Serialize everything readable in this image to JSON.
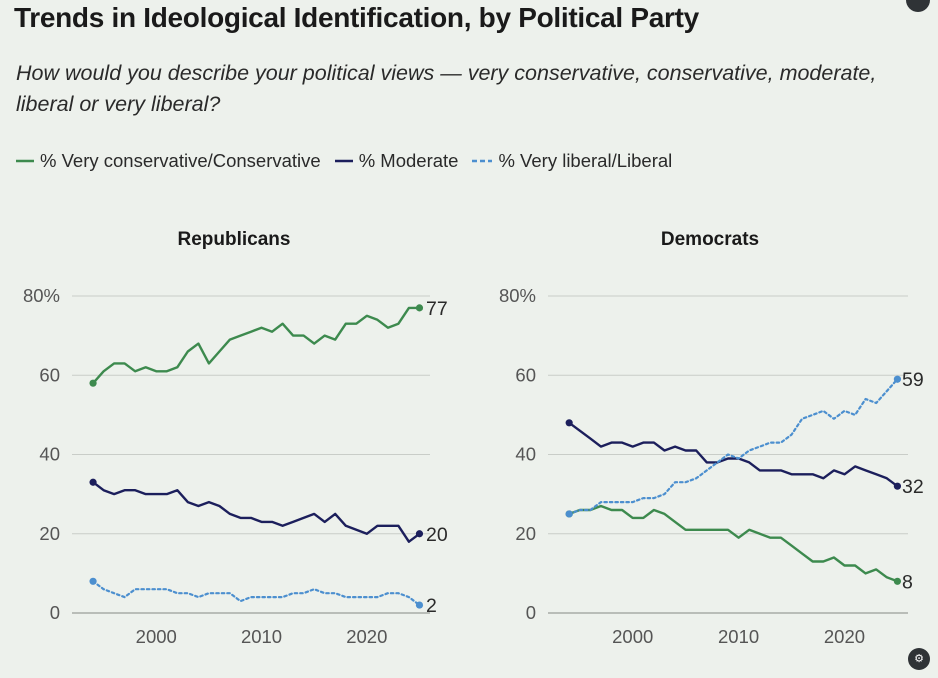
{
  "title": "Trends in Ideological Identification, by Political Party",
  "subtitle": "How would you describe your political views — very conservative, conservative, moderate, liberal or very liberal?",
  "legend": {
    "conservative": "% Very conservative/Conservative",
    "moderate": "% Moderate",
    "liberal": "% Very liberal/Liberal"
  },
  "colors": {
    "conservative": "#3d8a4e",
    "moderate": "#1c1f5c",
    "liberal": "#4c8fcf",
    "grid": "#c9cdc8",
    "axis_text": "#555555"
  },
  "icons": {
    "corner": "settings-icon"
  },
  "chart_data": [
    {
      "type": "line",
      "title": "Republicans",
      "xlabel": "",
      "ylabel": "",
      "xlim": [
        1992,
        2026
      ],
      "ylim": [
        0,
        80
      ],
      "xticks": [
        "2000",
        "2010",
        "2020"
      ],
      "yticks": [
        "0",
        "20",
        "40",
        "60",
        "80%"
      ],
      "series": [
        {
          "name": "% Very conservative/Conservative",
          "style": "solid",
          "color_key": "conservative",
          "end_label": "77",
          "x": [
            1994,
            1995,
            1996,
            1997,
            1998,
            1999,
            2000,
            2001,
            2002,
            2003,
            2004,
            2005,
            2006,
            2007,
            2008,
            2009,
            2010,
            2011,
            2012,
            2013,
            2014,
            2015,
            2016,
            2017,
            2018,
            2019,
            2020,
            2021,
            2022,
            2023,
            2024,
            2025
          ],
          "y": [
            58,
            61,
            63,
            63,
            61,
            62,
            61,
            61,
            62,
            66,
            68,
            63,
            66,
            69,
            70,
            71,
            72,
            71,
            73,
            70,
            70,
            68,
            70,
            69,
            73,
            73,
            75,
            74,
            72,
            73,
            77,
            77
          ]
        },
        {
          "name": "% Moderate",
          "style": "solid",
          "color_key": "moderate",
          "end_label": "20",
          "x": [
            1994,
            1995,
            1996,
            1997,
            1998,
            1999,
            2000,
            2001,
            2002,
            2003,
            2004,
            2005,
            2006,
            2007,
            2008,
            2009,
            2010,
            2011,
            2012,
            2013,
            2014,
            2015,
            2016,
            2017,
            2018,
            2019,
            2020,
            2021,
            2022,
            2023,
            2024,
            2025
          ],
          "y": [
            33,
            31,
            30,
            31,
            31,
            30,
            30,
            30,
            31,
            28,
            27,
            28,
            27,
            25,
            24,
            24,
            23,
            23,
            22,
            23,
            24,
            25,
            23,
            25,
            22,
            21,
            20,
            22,
            22,
            22,
            18,
            20
          ]
        },
        {
          "name": "% Very liberal/Liberal",
          "style": "dotted",
          "color_key": "liberal",
          "end_label": "2",
          "x": [
            1994,
            1995,
            1996,
            1997,
            1998,
            1999,
            2000,
            2001,
            2002,
            2003,
            2004,
            2005,
            2006,
            2007,
            2008,
            2009,
            2010,
            2011,
            2012,
            2013,
            2014,
            2015,
            2016,
            2017,
            2018,
            2019,
            2020,
            2021,
            2022,
            2023,
            2024,
            2025
          ],
          "y": [
            8,
            6,
            5,
            4,
            6,
            6,
            6,
            6,
            5,
            5,
            4,
            5,
            5,
            5,
            3,
            4,
            4,
            4,
            4,
            5,
            5,
            6,
            5,
            5,
            4,
            4,
            4,
            4,
            5,
            5,
            4,
            2
          ]
        }
      ]
    },
    {
      "type": "line",
      "title": "Democrats",
      "xlabel": "",
      "ylabel": "",
      "xlim": [
        1992,
        2026
      ],
      "ylim": [
        0,
        80
      ],
      "xticks": [
        "2000",
        "2010",
        "2020"
      ],
      "yticks": [
        "0",
        "20",
        "40",
        "60",
        "80%"
      ],
      "series": [
        {
          "name": "% Very conservative/Conservative",
          "style": "solid",
          "color_key": "conservative",
          "end_label": "8",
          "x": [
            1994,
            1995,
            1996,
            1997,
            1998,
            1999,
            2000,
            2001,
            2002,
            2003,
            2004,
            2005,
            2006,
            2007,
            2008,
            2009,
            2010,
            2011,
            2012,
            2013,
            2014,
            2015,
            2016,
            2017,
            2018,
            2019,
            2020,
            2021,
            2022,
            2023,
            2024,
            2025
          ],
          "y": [
            25,
            26,
            26,
            27,
            26,
            26,
            24,
            24,
            26,
            25,
            23,
            21,
            21,
            21,
            21,
            21,
            19,
            21,
            20,
            19,
            19,
            17,
            15,
            13,
            13,
            14,
            12,
            12,
            10,
            11,
            9,
            8
          ]
        },
        {
          "name": "% Moderate",
          "style": "solid",
          "color_key": "moderate",
          "end_label": "32",
          "x": [
            1994,
            1995,
            1996,
            1997,
            1998,
            1999,
            2000,
            2001,
            2002,
            2003,
            2004,
            2005,
            2006,
            2007,
            2008,
            2009,
            2010,
            2011,
            2012,
            2013,
            2014,
            2015,
            2016,
            2017,
            2018,
            2019,
            2020,
            2021,
            2022,
            2023,
            2024,
            2025
          ],
          "y": [
            48,
            46,
            44,
            42,
            43,
            43,
            42,
            43,
            43,
            41,
            42,
            41,
            41,
            38,
            38,
            39,
            39,
            38,
            36,
            36,
            36,
            35,
            35,
            35,
            34,
            36,
            35,
            37,
            36,
            35,
            34,
            32
          ]
        },
        {
          "name": "% Very liberal/Liberal",
          "style": "dotted",
          "color_key": "liberal",
          "end_label": "59",
          "x": [
            1994,
            1995,
            1996,
            1997,
            1998,
            1999,
            2000,
            2001,
            2002,
            2003,
            2004,
            2005,
            2006,
            2007,
            2008,
            2009,
            2010,
            2011,
            2012,
            2013,
            2014,
            2015,
            2016,
            2017,
            2018,
            2019,
            2020,
            2021,
            2022,
            2023,
            2024,
            2025
          ],
          "y": [
            25,
            26,
            26,
            28,
            28,
            28,
            28,
            29,
            29,
            30,
            33,
            33,
            34,
            36,
            38,
            40,
            39,
            41,
            42,
            43,
            43,
            45,
            49,
            50,
            51,
            49,
            51,
            50,
            54,
            53,
            56,
            59
          ]
        }
      ]
    }
  ]
}
